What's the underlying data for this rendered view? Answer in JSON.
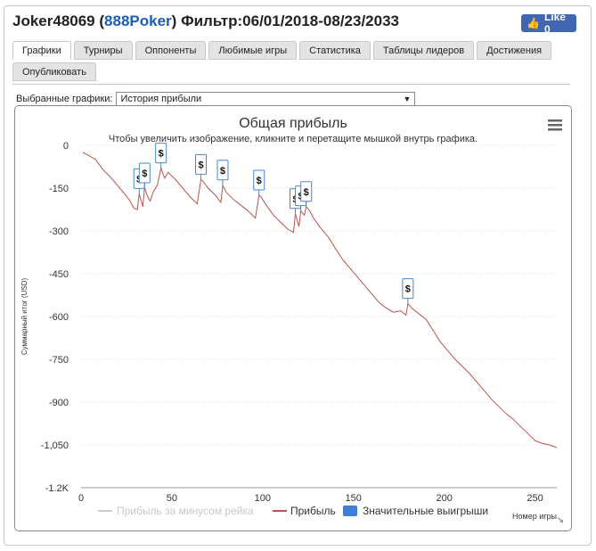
{
  "header": {
    "player": "Joker48069",
    "paren_open": "(",
    "site": "888Poker",
    "paren_close": ")",
    "filter": "Фильтр:06/01/2018-08/23/2033"
  },
  "fb_like": {
    "label": "Like 0",
    "icon": "thumbs-up-icon"
  },
  "tabs_row1": [
    "Графики",
    "Турниры",
    "Оппоненты",
    "Любимые игры",
    "Статистика",
    "Таблицы лидеров",
    "Достижения"
  ],
  "tabs_row2": [
    "Опубликовать"
  ],
  "active_tab": "Графики",
  "selector": {
    "label": "Выбранные графики:",
    "value": "История прибыли"
  },
  "colors": {
    "profit_line": "#b85450",
    "rake_line": "#cccccc",
    "marker_border": "#4a86c8",
    "marker_legend": "#3b82d6"
  },
  "chart_data": {
    "type": "line",
    "title": "Общая прибыль",
    "subtitle": "Чтобы увеличить изображение, кликните и перетащите мышкой внутрь графика.",
    "ylabel": "Суммарный итог (USD)",
    "xlabel": "Номер игры",
    "xlim": [
      0,
      262
    ],
    "ylim": [
      -1200,
      0
    ],
    "x_ticks": [
      0,
      50,
      100,
      150,
      200,
      250
    ],
    "y_ticks": [
      0,
      -150,
      -300,
      -450,
      -600,
      -750,
      -900,
      -1050,
      -1200
    ],
    "y_tick_labels": [
      "0",
      "-150",
      "-300",
      "-450",
      "-600",
      "-750",
      "-900",
      "-1,050",
      "-1.2K"
    ],
    "grid": true,
    "legend": [
      "Прибыль за минусом рейка",
      "Прибыль",
      "Значительные выигрыши"
    ],
    "legend_position": "bottom",
    "series": [
      {
        "name": "Прибыль",
        "x": [
          1,
          4,
          8,
          12,
          16,
          20,
          24,
          27,
          29,
          31,
          32,
          34,
          35,
          37,
          38,
          40,
          42,
          44,
          46,
          48,
          52,
          56,
          60,
          64,
          66,
          67,
          70,
          74,
          77,
          78,
          80,
          84,
          88,
          92,
          96,
          98,
          99,
          102,
          106,
          110,
          114,
          117,
          118,
          120,
          121,
          123,
          124,
          126,
          128,
          132,
          136,
          140,
          144,
          148,
          152,
          156,
          160,
          164,
          168,
          172,
          176,
          179,
          180,
          182,
          186,
          190,
          194,
          198,
          202,
          206,
          210,
          214,
          218,
          222,
          226,
          230,
          234,
          238,
          242,
          246,
          250,
          254,
          258,
          262
        ],
        "y": [
          -25,
          -35,
          -50,
          -85,
          -110,
          -140,
          -170,
          -195,
          -220,
          -225,
          -170,
          -215,
          -150,
          -185,
          -195,
          -160,
          -140,
          -80,
          -115,
          -95,
          -120,
          -150,
          -180,
          -205,
          -120,
          -125,
          -150,
          -175,
          -200,
          -140,
          -165,
          -190,
          -210,
          -230,
          -255,
          -175,
          -180,
          -210,
          -245,
          -270,
          -295,
          -305,
          -240,
          -285,
          -230,
          -245,
          -215,
          -230,
          -255,
          -290,
          -320,
          -360,
          -400,
          -430,
          -460,
          -490,
          -520,
          -550,
          -570,
          -585,
          -580,
          -595,
          -555,
          -570,
          -590,
          -610,
          -650,
          -690,
          -720,
          -750,
          -775,
          -800,
          -830,
          -860,
          -890,
          -915,
          -940,
          -960,
          -985,
          -1010,
          -1035,
          -1045,
          -1050,
          -1060
        ]
      }
    ],
    "big_wins": [
      {
        "x": 32,
        "y": -170
      },
      {
        "x": 35,
        "y": -150
      },
      {
        "x": 44,
        "y": -80
      },
      {
        "x": 66,
        "y": -120
      },
      {
        "x": 78,
        "y": -140
      },
      {
        "x": 98,
        "y": -175
      },
      {
        "x": 118,
        "y": -240
      },
      {
        "x": 121,
        "y": -230
      },
      {
        "x": 124,
        "y": -215
      },
      {
        "x": 180,
        "y": -555
      }
    ],
    "marker_symbol": "$"
  }
}
